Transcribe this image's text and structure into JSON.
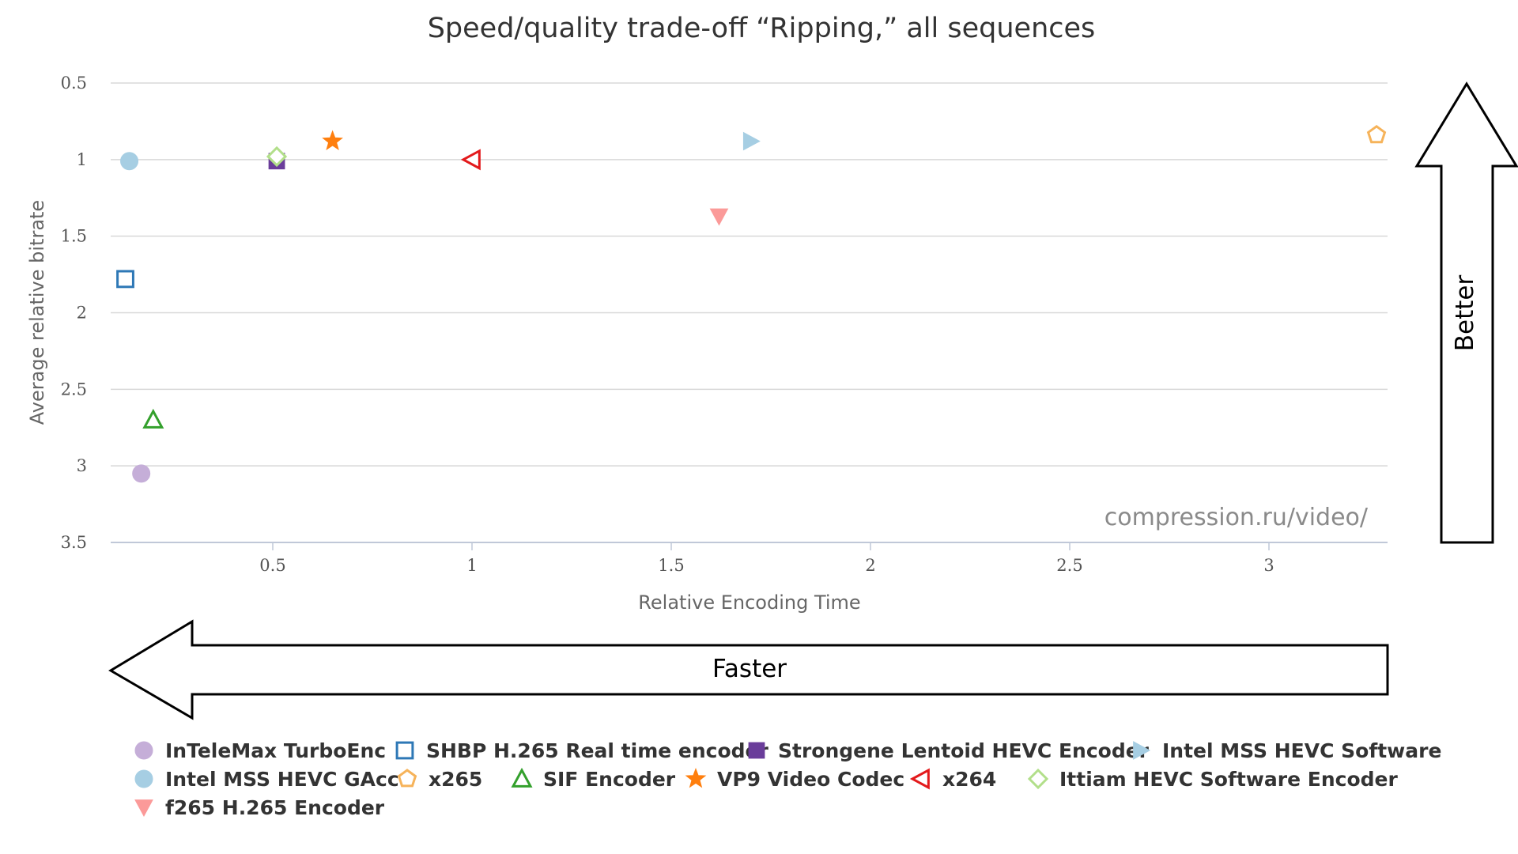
{
  "chart_data": {
    "type": "scatter",
    "title": "Speed/quality trade-off “Ripping,” all sequences",
    "xlabel": "Relative Encoding Time",
    "ylabel": "Average relative bitrate",
    "xlim": [
      0.1,
      3.3
    ],
    "ylim": [
      0.5,
      3.5
    ],
    "y_reversed": true,
    "x_ticks": [
      "0.5",
      "1",
      "1.5",
      "2",
      "2.5",
      "3"
    ],
    "y_ticks": [
      "0.5",
      "1",
      "1.5",
      "2",
      "2.5",
      "3",
      "3.5"
    ],
    "grid": "horizontal",
    "legend_position": "bottom",
    "watermark": "compression.ru/video/",
    "annotations": {
      "faster": "Faster",
      "better": "Better"
    },
    "series": [
      {
        "name": "InTeleMax TurboEnc",
        "marker": "circle",
        "color": "#c5aed8",
        "filled": true,
        "x": 0.17,
        "y": 3.05
      },
      {
        "name": "SHBP H.265 Real time encoder",
        "marker": "square",
        "color": "#2e78b6",
        "filled": false,
        "x": 0.13,
        "y": 1.78
      },
      {
        "name": "Strongene Lentoid HEVC Encoder",
        "marker": "square",
        "color": "#6a3d9a",
        "filled": true,
        "x": 0.51,
        "y": 1.01
      },
      {
        "name": "Intel MSS HEVC Software",
        "marker": "triangle-right",
        "color": "#a6cee3",
        "filled": true,
        "x": 1.7,
        "y": 0.88
      },
      {
        "name": "Intel MSS HEVC GAcc",
        "marker": "circle",
        "color": "#a6cee3",
        "filled": true,
        "x": 0.14,
        "y": 1.01
      },
      {
        "name": "x265",
        "marker": "pentagon",
        "color": "#f6b35a",
        "filled": false,
        "x": 3.27,
        "y": 0.84
      },
      {
        "name": "SIF Encoder",
        "marker": "triangle-up",
        "color": "#33a02c",
        "filled": false,
        "x": 0.2,
        "y": 2.7
      },
      {
        "name": "VP9 Video Codec",
        "marker": "star",
        "color": "#ff7f0e",
        "filled": true,
        "x": 0.65,
        "y": 0.88
      },
      {
        "name": "x264",
        "marker": "triangle-left",
        "color": "#e31a1c",
        "filled": false,
        "x": 1.0,
        "y": 1.0
      },
      {
        "name": "Ittiam HEVC Software Encoder",
        "marker": "diamond",
        "color": "#b2df8a",
        "filled": false,
        "x": 0.51,
        "y": 0.98
      },
      {
        "name": "f265 H.265 Encoder",
        "marker": "triangle-down",
        "color": "#fb9a99",
        "filled": true,
        "x": 1.62,
        "y": 1.37
      }
    ]
  }
}
